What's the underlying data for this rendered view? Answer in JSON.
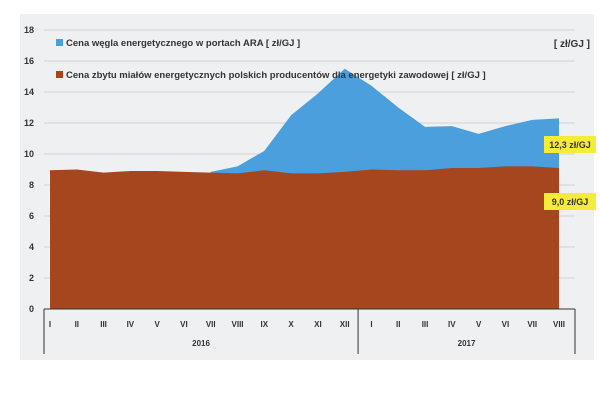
{
  "chart_data": {
    "type": "area",
    "title": "",
    "unit_label": "[ zł/GJ ]",
    "ylim": [
      0,
      18
    ],
    "yticks": [
      0,
      2,
      4,
      6,
      8,
      10,
      12,
      14,
      16,
      18
    ],
    "grid": true,
    "legend_placement": "top-left",
    "categories": [
      "I",
      "II",
      "III",
      "IV",
      "V",
      "VI",
      "VII",
      "VIII",
      "IX",
      "X",
      "XI",
      "XII",
      "I",
      "II",
      "III",
      "IV",
      "V",
      "VI",
      "VII",
      "VIII"
    ],
    "groups": [
      {
        "label": "2016",
        "count": 12
      },
      {
        "label": "2017",
        "count": 8
      }
    ],
    "series": [
      {
        "name": "Cena węgla energetycznego w portach ARA  [ zł/GJ ]",
        "color": "#4a9fdc",
        "values": [
          null,
          null,
          null,
          null,
          null,
          null,
          8.85,
          9.2,
          10.2,
          12.5,
          13.9,
          15.5,
          14.4,
          13.0,
          11.75,
          11.8,
          11.3,
          11.8,
          12.2,
          12.3
        ]
      },
      {
        "name": "Cena zbytu miałów energetycznych polskich producentów dla energetyki zawodowej [ zł/GJ ]",
        "color": "#a5461f",
        "values": [
          8.95,
          9.0,
          8.8,
          8.9,
          8.9,
          8.85,
          8.8,
          8.75,
          8.95,
          8.75,
          8.75,
          8.85,
          9.0,
          8.95,
          8.95,
          9.1,
          9.1,
          9.2,
          9.2,
          9.1
        ]
      }
    ],
    "annotations": [
      {
        "text": "12,3 zł/GJ",
        "value": 12.3,
        "color": "#f5ec3a"
      },
      {
        "text": "9,0 zł/GJ",
        "value": 9.0,
        "color": "#f5ec3a"
      }
    ]
  }
}
